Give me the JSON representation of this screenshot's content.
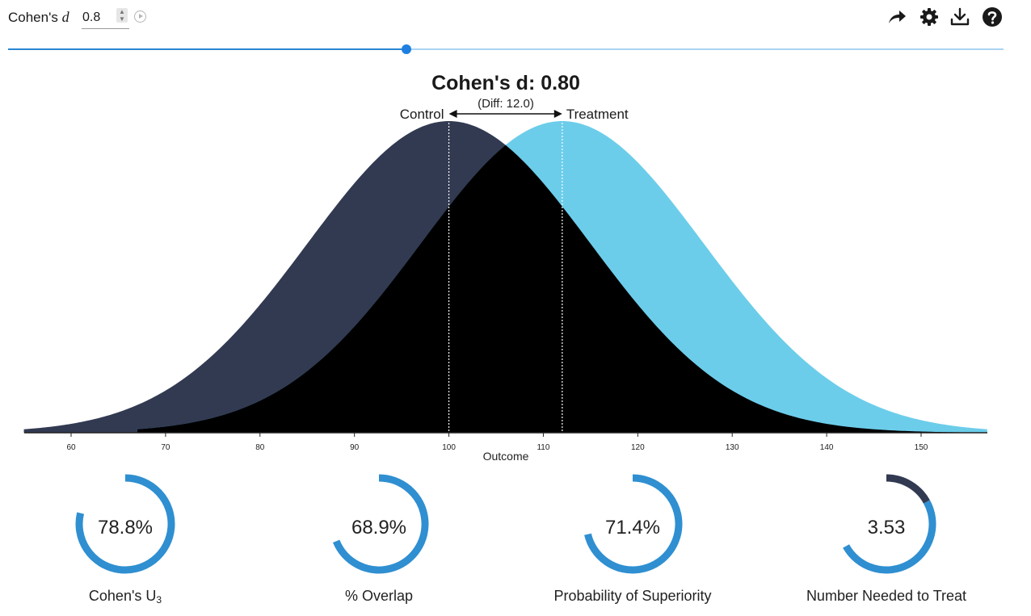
{
  "header": {
    "param_label": "Cohen's",
    "param_symbol": "d",
    "param_value": "0.8",
    "slider_value": 0.8,
    "slider_min": 0,
    "slider_max": 2,
    "toolbar_icons": [
      "share-icon",
      "gear-icon",
      "download-icon",
      "help-icon"
    ]
  },
  "chart_data": {
    "type": "area",
    "title": "Cohen's d: 0.80",
    "subtitle": "(Diff: 12.0)",
    "xlabel": "Outcome",
    "ylabel": "",
    "xlim": [
      55,
      157
    ],
    "xticks": [
      60,
      70,
      80,
      90,
      100,
      110,
      120,
      130,
      140,
      150
    ],
    "series": [
      {
        "name": "Control",
        "mean": 100,
        "sd": 15,
        "color": "#323a52"
      },
      {
        "name": "Treatment",
        "mean": 112,
        "sd": 15,
        "color": "#6ccdea"
      }
    ],
    "overlap_color": "#000000",
    "mean_lines": "dotted"
  },
  "metrics": [
    {
      "value": "78.8%",
      "label": "Cohen's U",
      "label_sub": "3",
      "fraction": 0.788,
      "color": "#2f8fd1",
      "remainder_color": ""
    },
    {
      "value": "68.9%",
      "label": "% Overlap",
      "label_sub": "",
      "fraction": 0.689,
      "color": "#2f8fd1",
      "remainder_color": ""
    },
    {
      "value": "71.4%",
      "label": "Probability of Superiority",
      "label_sub": "",
      "fraction": 0.714,
      "color": "#2f8fd1",
      "remainder_color": ""
    },
    {
      "value": "3.53",
      "label": "Number Needed to Treat",
      "label_sub": "",
      "fraction": 0.5,
      "color": "#2f8fd1",
      "remainder_color": "#323a52",
      "remainder_fraction": 0.17
    }
  ]
}
